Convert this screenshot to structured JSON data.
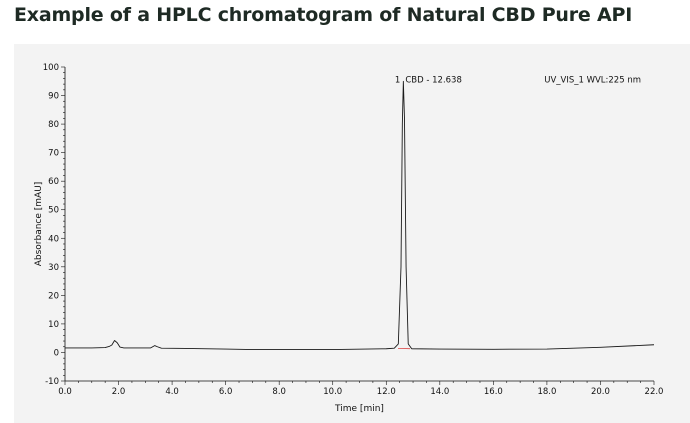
{
  "header": {
    "title": "Example of a HPLC chromatogram of Natural CBD Pure API"
  },
  "chart_data": {
    "type": "line",
    "title": "Example of a HPLC chromatogram of Natural CBD Pure API",
    "xlabel": "Time [min]",
    "ylabel": "Absorbance [mAU]",
    "xlim": [
      0,
      22
    ],
    "ylim": [
      -10,
      100
    ],
    "x_ticks": [
      "0.0",
      "2.0",
      "4.0",
      "6.0",
      "8.0",
      "10.0",
      "12.0",
      "14.0",
      "16.0",
      "18.0",
      "20.0",
      "22.0"
    ],
    "y_ticks": [
      "-10",
      "0",
      "10",
      "20",
      "30",
      "40",
      "50",
      "60",
      "70",
      "80",
      "90",
      "100"
    ],
    "grid": false,
    "detector_label": "UV_VIS_1 WVL:225 nm",
    "peaks": [
      {
        "number": "1",
        "name": "CBD",
        "retention_time": "12.638",
        "label": "CBD - 12.638"
      }
    ],
    "series": [
      {
        "color": "#1a1a1a",
        "points": [
          [
            0.0,
            1.6
          ],
          [
            1.0,
            1.6
          ],
          [
            1.5,
            1.7
          ],
          [
            1.65,
            2.1
          ],
          [
            1.75,
            2.6
          ],
          [
            1.85,
            4.2
          ],
          [
            1.95,
            3.4
          ],
          [
            2.05,
            1.9
          ],
          [
            2.2,
            1.6
          ],
          [
            3.2,
            1.6
          ],
          [
            3.35,
            2.4
          ],
          [
            3.45,
            2.0
          ],
          [
            3.6,
            1.5
          ],
          [
            4.5,
            1.4
          ],
          [
            6.0,
            1.2
          ],
          [
            7.0,
            1.0
          ],
          [
            8.0,
            1.0
          ],
          [
            10.0,
            1.0
          ],
          [
            12.0,
            1.3
          ],
          [
            12.3,
            1.5
          ],
          [
            12.45,
            3.0
          ],
          [
            12.55,
            30.0
          ],
          [
            12.6,
            80.0
          ],
          [
            12.638,
            95.0
          ],
          [
            12.68,
            82.0
          ],
          [
            12.74,
            30.0
          ],
          [
            12.82,
            3.0
          ],
          [
            12.95,
            1.3
          ],
          [
            14.0,
            1.2
          ],
          [
            16.0,
            1.1
          ],
          [
            18.0,
            1.2
          ],
          [
            20.0,
            1.8
          ],
          [
            22.0,
            2.7
          ]
        ]
      }
    ]
  }
}
